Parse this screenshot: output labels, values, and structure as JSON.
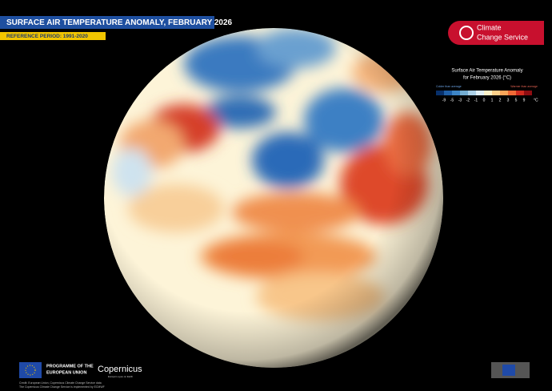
{
  "header": {
    "title": "SURFACE AIR TEMPERATURE ANOMALY, FEBRUARY 2026",
    "subtitle": "REFERENCE PERIOD: 1991-2020"
  },
  "logo": {
    "lines": [
      "Climate",
      "Change Service"
    ]
  },
  "legend": {
    "title_lines": [
      "Surface Air Temperature Anomaly",
      "for February 2026 (°C)"
    ],
    "left_note": "Colder than average",
    "right_note": "Warmer than average",
    "ticks": [
      "-9",
      "-5",
      "-3",
      "-2",
      "-1",
      "0",
      "1",
      "2",
      "3",
      "5",
      "9"
    ],
    "unit": "°C"
  },
  "footer": {
    "programme_lines": [
      "PROGRAMME OF THE",
      "EUROPEAN UNION"
    ],
    "copernicus": "Copernicus",
    "copernicus_tagline": "Europe's eyes on Earth",
    "credit_lines": [
      "Credit: European Union, Copernicus Climate Change Service data",
      "The Copernicus Climate Change Service is implemented by ECMWF"
    ]
  }
}
